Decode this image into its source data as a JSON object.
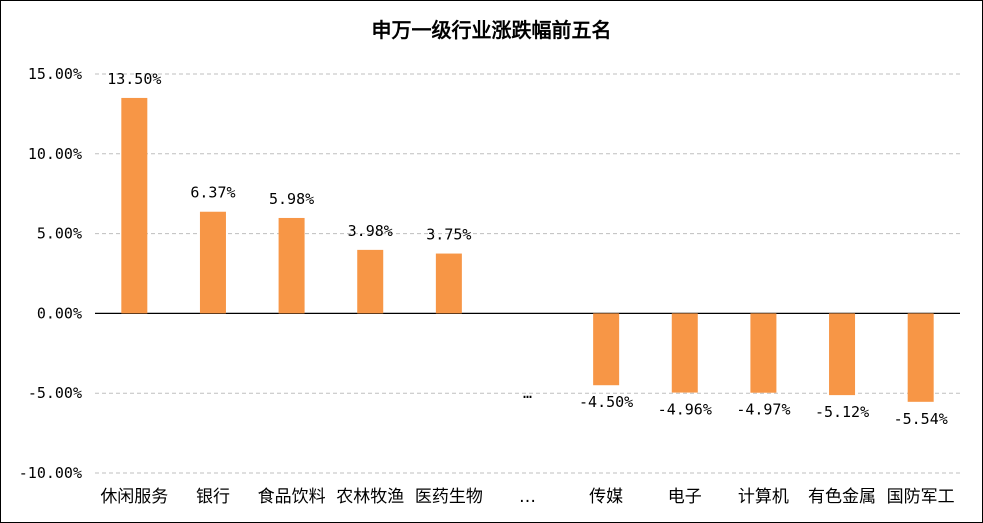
{
  "chart_data": {
    "type": "bar",
    "title": "申万一级行业涨跌幅前五名",
    "xlabel": "",
    "ylabel": "",
    "ylim": [
      -10,
      15
    ],
    "yticks": [
      15,
      10,
      5,
      0,
      -5,
      -10
    ],
    "ytick_labels": [
      "15.00%",
      "10.00%",
      "5.00%",
      "0.00%",
      "-5.00%",
      "-10.00%"
    ],
    "grid": true,
    "bar_color": "#F79646",
    "categories": [
      "休闲服务",
      "银行",
      "食品饮料",
      "农林牧渔",
      "医药生物",
      "…",
      "传媒",
      "电子",
      "计算机",
      "有色金属",
      "国防军工"
    ],
    "values": [
      13.5,
      6.37,
      5.98,
      3.98,
      3.75,
      null,
      -4.5,
      -4.96,
      -4.97,
      -5.12,
      -5.54
    ],
    "data_labels": [
      "13.50%",
      "6.37%",
      "5.98%",
      "3.98%",
      "3.75%",
      "…",
      "-4.50%",
      "-4.96%",
      "-4.97%",
      "-5.12%",
      "-5.54%"
    ]
  }
}
